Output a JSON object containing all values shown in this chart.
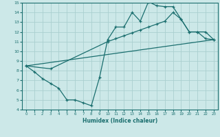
{
  "xlabel": "Humidex (Indice chaleur)",
  "bg_color": "#cce8e8",
  "grid_color": "#aacfcf",
  "line_color": "#1a6e6e",
  "xlim": [
    -0.5,
    23.5
  ],
  "ylim": [
    4,
    15
  ],
  "xticks": [
    0,
    1,
    2,
    3,
    4,
    5,
    6,
    7,
    8,
    9,
    10,
    11,
    12,
    13,
    14,
    15,
    16,
    17,
    18,
    19,
    20,
    21,
    22,
    23
  ],
  "yticks": [
    4,
    5,
    6,
    7,
    8,
    9,
    10,
    11,
    12,
    13,
    14,
    15
  ],
  "line1_x": [
    0,
    1,
    2,
    3,
    4,
    5,
    6,
    7,
    8,
    9,
    10,
    11,
    12,
    13,
    14,
    15,
    16,
    17,
    18,
    19,
    20,
    21,
    22,
    23
  ],
  "line1_y": [
    8.5,
    7.9,
    7.2,
    6.7,
    6.2,
    5.0,
    5.0,
    4.7,
    4.4,
    7.3,
    11.2,
    12.5,
    12.5,
    14.0,
    13.1,
    15.1,
    14.7,
    14.6,
    14.6,
    13.3,
    12.0,
    12.0,
    11.3,
    11.2
  ],
  "line2_x": [
    0,
    3,
    10,
    11,
    12,
    13,
    14,
    15,
    16,
    17,
    18,
    19,
    20,
    21,
    22,
    23
  ],
  "line2_y": [
    8.5,
    8.2,
    11.0,
    11.3,
    11.6,
    11.9,
    12.2,
    12.5,
    12.8,
    13.1,
    14.0,
    13.3,
    12.0,
    12.0,
    12.0,
    11.2
  ],
  "line3_x": [
    0,
    23
  ],
  "line3_y": [
    8.5,
    11.2
  ]
}
